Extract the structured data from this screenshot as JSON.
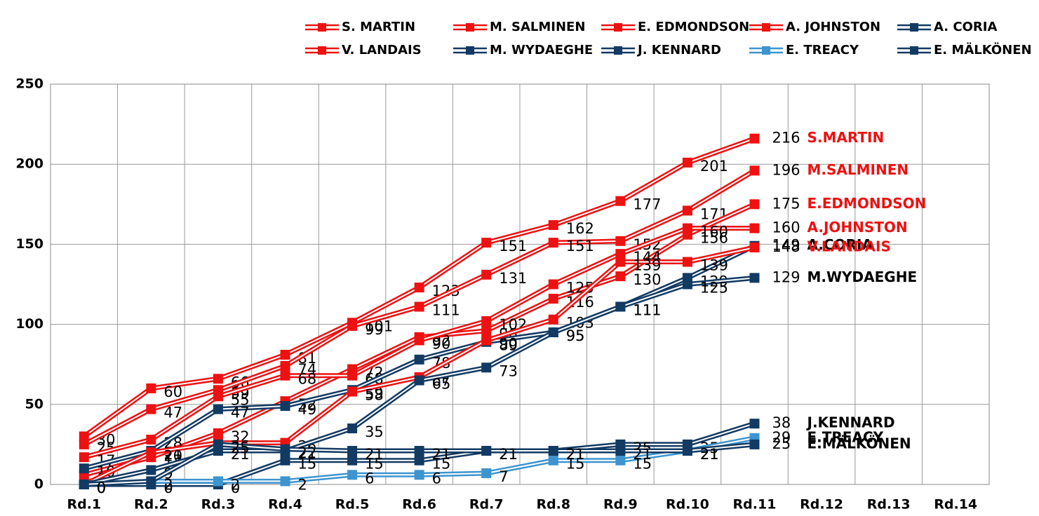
{
  "chart_data": {
    "type": "line",
    "categories": [
      "Rd.1",
      "Rd.2",
      "Rd.3",
      "Rd.4",
      "Rd.5",
      "Rd.6",
      "Rd.7",
      "Rd.8",
      "Rd.9",
      "Rd.10",
      "Rd.11",
      "Rd.12",
      "Rd.13",
      "Rd.14"
    ],
    "ylim": [
      0,
      250
    ],
    "yticks": [
      0,
      50,
      100,
      150,
      200,
      250
    ],
    "grid": true,
    "legend": "top",
    "series": [
      {
        "name": "S. MARTIN",
        "label": "S.MARTIN",
        "color": "#ee1111",
        "label_color": "#ee1111",
        "values": [
          30,
          60,
          66,
          81,
          101,
          123,
          151,
          162,
          177,
          201,
          216,
          null,
          null,
          null
        ]
      },
      {
        "name": "M. SALMINEN",
        "label": "M.SALMINEN",
        "color": "#ee1111",
        "label_color": "#ee1111",
        "values": [
          25,
          47,
          59,
          74,
          99,
          111,
          131,
          151,
          152,
          171,
          196,
          null,
          null,
          null
        ]
      },
      {
        "name": "E. EDMONDSON",
        "label": "E.EDMONDSON",
        "color": "#ee1111",
        "label_color": "#ee1111",
        "values": [
          6,
          17,
          32,
          52,
          72,
          92,
          96,
          116,
          130,
          156,
          175,
          null,
          null,
          null
        ]
      },
      {
        "name": "A. JOHNSTON",
        "label": "A.JOHNSTON",
        "color": "#ee1111",
        "label_color": "#ee1111",
        "values": [
          17,
          28,
          55,
          68,
          68,
          90,
          102,
          125,
          144,
          160,
          160,
          null,
          null,
          null
        ]
      },
      {
        "name": "A. CORIA",
        "label": "A.CORIA",
        "color": "#123a63",
        "label_color": "#000000",
        "values": [
          10,
          21,
          47,
          49,
          59,
          78,
          89,
          95,
          111,
          129,
          149,
          null,
          null,
          null
        ]
      },
      {
        "name": "V. LANDAIS",
        "label": "V.LANDAIS",
        "color": "#ee1111",
        "label_color": "#ee1111",
        "values": [
          0,
          20,
          26,
          26,
          58,
          67,
          90,
          103,
          139,
          139,
          148,
          null,
          null,
          null
        ]
      },
      {
        "name": "M. WYDAEGHE",
        "label": "M.WYDAEGHE",
        "color": "#123a63",
        "label_color": "#000000",
        "values": [
          0,
          9,
          21,
          21,
          35,
          65,
          73,
          95,
          111,
          125,
          129,
          null,
          null,
          null
        ]
      },
      {
        "name": "J. KENNARD",
        "label": "J.KENNARD",
        "color": "#123a63",
        "label_color": "#000000",
        "values": [
          0,
          0,
          0,
          15,
          15,
          15,
          21,
          21,
          25,
          25,
          38,
          null,
          null,
          null
        ]
      },
      {
        "name": "E. TREACY",
        "label": "E.TREACY",
        "color": "#3d94cf",
        "label_color": "#000000",
        "values": [
          0,
          2,
          2,
          2,
          6,
          6,
          7,
          15,
          15,
          21,
          29,
          null,
          null,
          null
        ]
      },
      {
        "name": "E. MÄLKÖNEN",
        "label": "E.MÄLKÖNEN",
        "color": "#123a63",
        "label_color": "#000000",
        "values": [
          0,
          2,
          25,
          22,
          21,
          21,
          21,
          21,
          21,
          21,
          25,
          null,
          null,
          null
        ]
      }
    ]
  }
}
